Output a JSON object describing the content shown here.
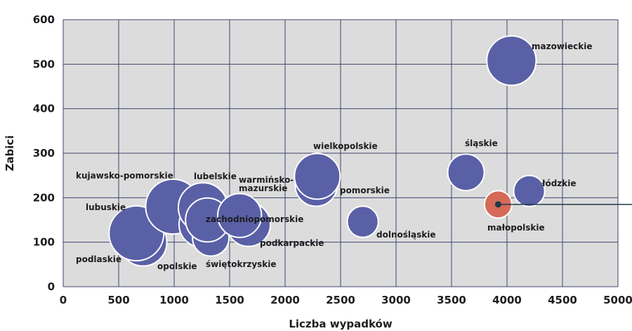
{
  "chart_data": {
    "type": "scatter",
    "xlabel": "Liczba wypadków",
    "ylabel": "Zabici",
    "xlim": [
      0,
      5000
    ],
    "ylim": [
      0,
      600
    ],
    "xticks": [
      "0",
      "500",
      "1000",
      "1500",
      "2000",
      "2500",
      "3000",
      "3500",
      "4000",
      "4500",
      "5000"
    ],
    "yticks": [
      "0",
      "100",
      "200",
      "300",
      "400",
      "500",
      "600"
    ],
    "grid": true,
    "colors": {
      "plot_bg": "#dcdcdc",
      "grid": "#3f4570",
      "bubble": "#5a60a6",
      "bubble_stroke": "#ffffff",
      "highlight": "#d46a57",
      "text": "#1d1d1f",
      "highlight_text": "#c0594a",
      "pointer": "#1f3a4a"
    },
    "points": [
      {
        "label": "podlaskie",
        "x": 720,
        "y": 100,
        "size": 26
      },
      {
        "label": "lubuskie",
        "x": 660,
        "y": 120,
        "size": 30
      },
      {
        "label": "kujawsko-pomorskie",
        "x": 990,
        "y": 180,
        "size": 30
      },
      {
        "label": "opolskie",
        "x": 1250,
        "y": 140,
        "size": 25
      },
      {
        "label": "lubelskie",
        "x": 1260,
        "y": 178,
        "size": 27
      },
      {
        "label": "świętokrzyskie",
        "x": 1330,
        "y": 110,
        "size": 20
      },
      {
        "label": "zachodniopomorskie",
        "x": 1300,
        "y": 150,
        "size": 24
      },
      {
        "label": "podkarpackie",
        "x": 1670,
        "y": 140,
        "size": 24
      },
      {
        "label": "warmińsko-mazurskie",
        "x": 1590,
        "y": 160,
        "size": 24
      },
      {
        "label": "pomorskie",
        "x": 2280,
        "y": 228,
        "size": 23
      },
      {
        "label": "wielkopolskie",
        "x": 2290,
        "y": 248,
        "size": 25
      },
      {
        "label": "dolnośląskie",
        "x": 2700,
        "y": 146,
        "size": 17
      },
      {
        "label": "śląskie",
        "x": 3630,
        "y": 257,
        "size": 20
      },
      {
        "label": "łódzkie",
        "x": 4200,
        "y": 215,
        "size": 17
      },
      {
        "label": "małopolskie",
        "x": 3920,
        "y": 185,
        "size": 15,
        "highlight": true
      },
      {
        "label": "mazowieckie",
        "x": 4040,
        "y": 508,
        "size": 27
      }
    ]
  }
}
